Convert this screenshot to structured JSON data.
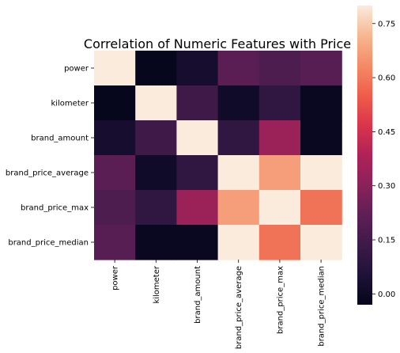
{
  "chart_data": {
    "type": "heatmap",
    "title": "Correlation of Numeric Features with Price",
    "xlabel": "",
    "ylabel": "",
    "x_categories": [
      "power",
      "kilometer",
      "brand_amount",
      "brand_price_average",
      "brand_price_max",
      "brand_price_median"
    ],
    "y_categories": [
      "power",
      "kilometer",
      "brand_amount",
      "brand_price_average",
      "brand_price_max",
      "brand_price_median"
    ],
    "values": [
      [
        1.0,
        -0.02,
        0.03,
        0.21,
        0.18,
        0.2
      ],
      [
        -0.02,
        1.0,
        0.14,
        0.01,
        0.1,
        -0.01
      ],
      [
        0.03,
        0.14,
        1.0,
        0.1,
        0.34,
        -0.01
      ],
      [
        0.21,
        0.01,
        0.1,
        1.0,
        0.67,
        1.0
      ],
      [
        0.18,
        0.1,
        0.34,
        0.67,
        1.0,
        0.59
      ],
      [
        0.2,
        -0.01,
        -0.01,
        1.0,
        0.59,
        1.0
      ]
    ],
    "vmin": -0.03,
    "vmax": 0.8,
    "colormap": "rocket",
    "colorbar_ticks": [
      "0.00",
      "0.15",
      "0.30",
      "0.45",
      "0.60",
      "0.75"
    ],
    "colorbar_tick_values": [
      0.0,
      0.15,
      0.3,
      0.45,
      0.6,
      0.75
    ],
    "grid": false,
    "legend": "colorbar-right"
  }
}
